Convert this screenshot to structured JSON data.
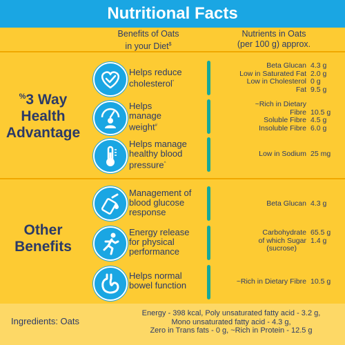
{
  "title": "Nutritional Facts",
  "headers": {
    "benefits_line1": "Benefits of Oats",
    "benefits_line2": "in your Diet",
    "benefits_mark": "$",
    "nutrients_line1": "Nutrients in Oats",
    "nutrients_line2": "(per 100 g) approx."
  },
  "sections": [
    {
      "mark": "%",
      "label_lines": [
        "3 Way",
        "Health",
        "Advantage"
      ]
    },
    {
      "mark": "",
      "label_lines": [
        "Other",
        "Benefits"
      ]
    }
  ],
  "benefits": [
    {
      "icon": "heart-check-icon",
      "lines": [
        "Helps reduce",
        "cholesterol"
      ],
      "mark": "*",
      "nutrients": [
        [
          "Beta Glucan",
          "4.3 g"
        ],
        [
          "Low in Saturated Fat",
          "2.0 g"
        ],
        [
          "Low in Cholesterol",
          "0 g"
        ],
        [
          "Fat",
          "9.5 g"
        ]
      ]
    },
    {
      "icon": "weight-scale-icon",
      "lines": [
        "Helps",
        "manage",
        "weight"
      ],
      "mark": "#",
      "nutrients": [
        [
          "~Rich in Dietary",
          ""
        ],
        [
          "Fibre",
          "10.5 g"
        ],
        [
          "Soluble Fibre",
          "4.5 g"
        ],
        [
          "Insoluble Fibre",
          "6.0 g"
        ]
      ]
    },
    {
      "icon": "thermometer-icon",
      "lines": [
        "Helps manage",
        "healthy blood",
        "pressure"
      ],
      "mark": "^",
      "nutrients": [
        [
          "Low in Sodium",
          "25 mg"
        ]
      ]
    },
    {
      "icon": "glucose-meter-icon",
      "lines": [
        "Management of",
        "blood glucose",
        "response"
      ],
      "mark": "",
      "nutrients": [
        [
          "Beta Glucan",
          "4.3 g"
        ]
      ]
    },
    {
      "icon": "runner-icon",
      "lines": [
        "Energy release",
        "for physical",
        "performance"
      ],
      "mark": "",
      "nutrients": [
        [
          "Carbohydrate",
          "65.5 g"
        ],
        [
          "of which Sugar",
          "1.4 g"
        ],
        [
          "(sucrose)",
          ""
        ]
      ]
    },
    {
      "icon": "stomach-icon",
      "lines": [
        "Helps normal",
        "bowel function"
      ],
      "mark": "",
      "nutrients": [
        [
          "~Rich in Dietary Fibre",
          "10.5 g"
        ]
      ]
    }
  ],
  "footer": {
    "ingredients": "Ingredients: Oats",
    "line1": "Energy - 398 kcal, Poly unsaturated fatty acid - 3.2 g,",
    "line2": "Mono unsaturated fatty acid - 4.3 g,",
    "line3": "Zero in Trans fats - 0 g, ~Rich in Protein - 12.5 g"
  },
  "colors": {
    "title_bar": "#1AA6E3",
    "background": "#FDCB33",
    "text": "#2B3A67",
    "accent_bar": "#16A89A",
    "footer_bg": "#FDD866"
  }
}
